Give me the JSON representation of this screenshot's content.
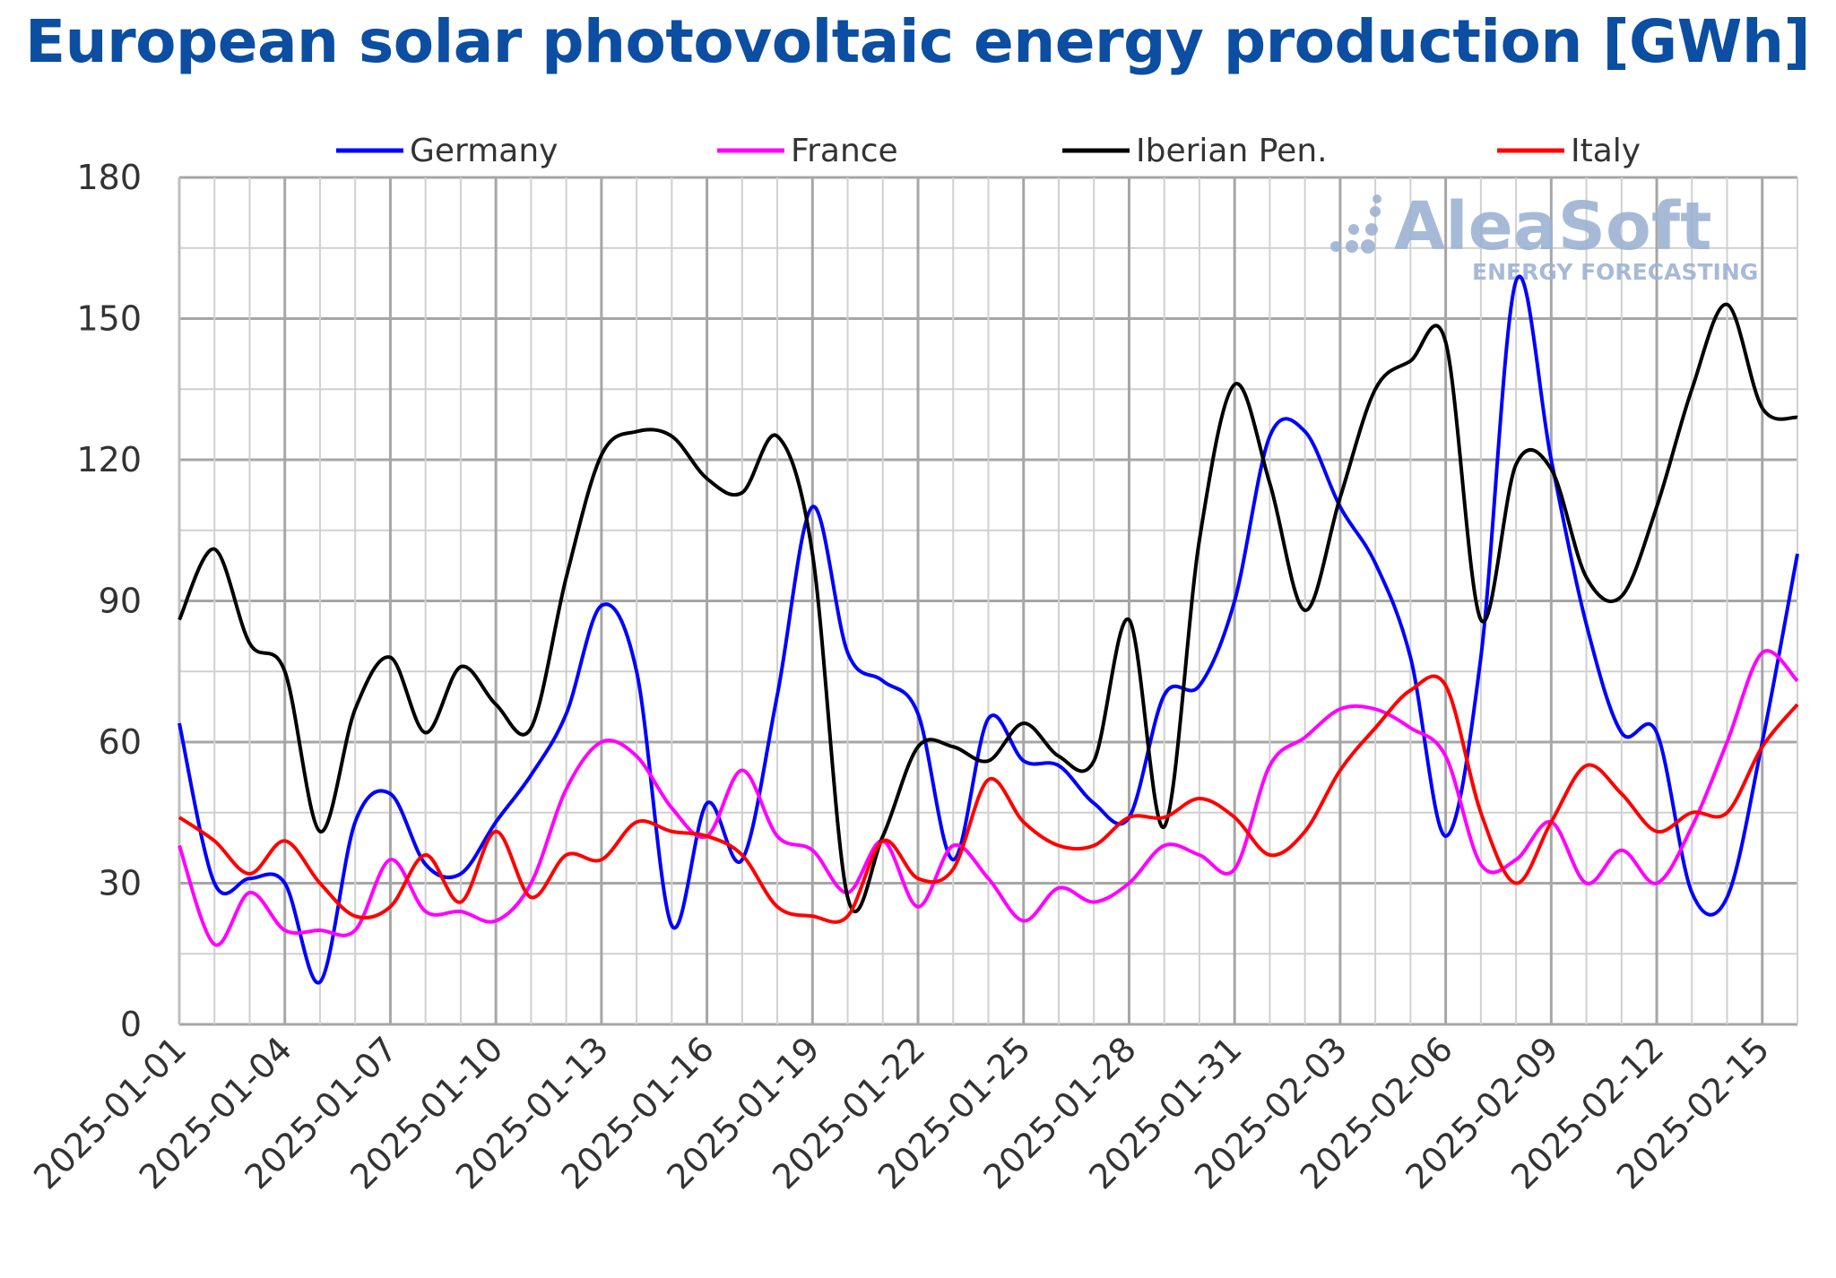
{
  "chart_data": {
    "type": "line",
    "title": "European solar photovoltaic energy production [GWh]",
    "xlabel": "",
    "ylabel": "",
    "ylim": [
      0,
      180
    ],
    "yticks": [
      0,
      30,
      60,
      90,
      120,
      150,
      180
    ],
    "grid": true,
    "legend": "top",
    "x": [
      "2025-01-01",
      "2025-01-02",
      "2025-01-03",
      "2025-01-04",
      "2025-01-05",
      "2025-01-06",
      "2025-01-07",
      "2025-01-08",
      "2025-01-09",
      "2025-01-10",
      "2025-01-11",
      "2025-01-12",
      "2025-01-13",
      "2025-01-14",
      "2025-01-15",
      "2025-01-16",
      "2025-01-17",
      "2025-01-18",
      "2025-01-19",
      "2025-01-20",
      "2025-01-21",
      "2025-01-22",
      "2025-01-23",
      "2025-01-24",
      "2025-01-25",
      "2025-01-26",
      "2025-01-27",
      "2025-01-28",
      "2025-01-29",
      "2025-01-30",
      "2025-01-31",
      "2025-02-01",
      "2025-02-02",
      "2025-02-03",
      "2025-02-04",
      "2025-02-05",
      "2025-02-06",
      "2025-02-07",
      "2025-02-08",
      "2025-02-09",
      "2025-02-10",
      "2025-02-11",
      "2025-02-12",
      "2025-02-13",
      "2025-02-14",
      "2025-02-15",
      "2025-02-16"
    ],
    "xtick_labels": [
      "2025-01-01",
      "2025-01-04",
      "2025-01-07",
      "2025-01-10",
      "2025-01-13",
      "2025-01-16",
      "2025-01-19",
      "2025-01-22",
      "2025-01-25",
      "2025-01-28",
      "2025-01-31",
      "2025-02-03",
      "2025-02-06",
      "2025-02-09",
      "2025-02-12",
      "2025-02-15"
    ],
    "series": [
      {
        "name": "Germany",
        "color": "#0000ff",
        "values": [
          64,
          30,
          31,
          30,
          9,
          43,
          49,
          34,
          32,
          43,
          53,
          66,
          89,
          75,
          21,
          47,
          35,
          70,
          110,
          79,
          73,
          66,
          35,
          65,
          56,
          55,
          47,
          44,
          70,
          72,
          90,
          125,
          126,
          110,
          98,
          78,
          40,
          78,
          158,
          120,
          85,
          62,
          62,
          28,
          27,
          60,
          100
        ]
      },
      {
        "name": "France",
        "color": "#ff00ff",
        "values": [
          38,
          17,
          28,
          20,
          20,
          20,
          35,
          24,
          24,
          22,
          30,
          50,
          60,
          57,
          46,
          40,
          54,
          40,
          37,
          28,
          39,
          25,
          38,
          31,
          22,
          29,
          26,
          30,
          38,
          36,
          33,
          55,
          61,
          67,
          67,
          63,
          57,
          34,
          35,
          43,
          30,
          37,
          30,
          42,
          60,
          79,
          73
        ]
      },
      {
        "name": "Iberian Pen.",
        "color": "#000000",
        "values": [
          86,
          101,
          81,
          75,
          41,
          67,
          78,
          62,
          76,
          68,
          63,
          95,
          121,
          126,
          125,
          116,
          113,
          125,
          100,
          27,
          40,
          59,
          59,
          56,
          64,
          57,
          56,
          86,
          42,
          103,
          136,
          115,
          88,
          112,
          135,
          141,
          145,
          86,
          119,
          118,
          95,
          91,
          110,
          135,
          153,
          131,
          129
        ]
      },
      {
        "name": "Italy",
        "color": "#ff0000",
        "values": [
          44,
          39,
          32,
          39,
          30,
          23,
          25,
          36,
          26,
          41,
          27,
          36,
          35,
          43,
          41,
          40,
          36,
          25,
          23,
          23,
          39,
          31,
          33,
          52,
          43,
          38,
          38,
          44,
          44,
          48,
          44,
          36,
          41,
          54,
          63,
          71,
          72,
          45,
          30,
          43,
          55,
          49,
          41,
          45,
          45,
          59,
          68
        ]
      }
    ]
  },
  "logo": {
    "name": "AleaSoft",
    "tagline": "ENERGY FORECASTING",
    "color": "#9db3d4"
  }
}
